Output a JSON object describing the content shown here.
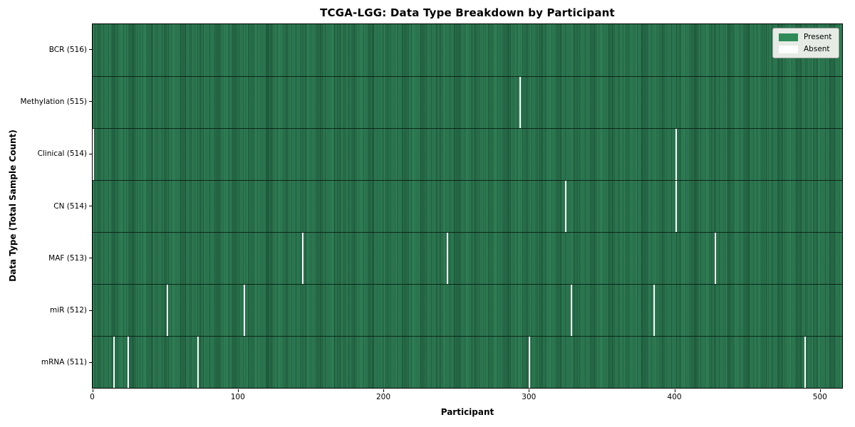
{
  "chart_data": {
    "type": "heatmap",
    "title": "TCGA-LGG: Data Type Breakdown by Participant",
    "xlabel": "Participant",
    "ylabel": "Data Type (Total Sample Count)",
    "x_ticks": [
      0,
      100,
      200,
      300,
      400,
      500
    ],
    "n_participants": 516,
    "grid": false,
    "legend_position": "upper right",
    "colors": {
      "present": "#2e8b57",
      "present_edge": "#14412a",
      "absent": "#ffffff",
      "row_divider": "#0a140c",
      "plot_border": "#000000",
      "legend_background": "#e6ebe6"
    },
    "legend": {
      "entries": [
        {
          "label": "Present",
          "color": "#2e8b57"
        },
        {
          "label": "Absent",
          "color": "#ffffff"
        }
      ]
    },
    "rows": [
      {
        "label": "BCR (516)",
        "data_type": "BCR",
        "total_samples": 516,
        "absent_participants": []
      },
      {
        "label": "Methylation (515)",
        "data_type": "Methylation",
        "total_samples": 515,
        "absent_participants": [
          294
        ]
      },
      {
        "label": "Clinical (514)",
        "data_type": "Clinical",
        "total_samples": 514,
        "absent_participants": [
          0,
          401
        ]
      },
      {
        "label": "CN (514)",
        "data_type": "CN",
        "total_samples": 514,
        "absent_participants": [
          325,
          401
        ]
      },
      {
        "label": "MAF (513)",
        "data_type": "MAF",
        "total_samples": 513,
        "absent_participants": [
          144,
          244,
          428
        ]
      },
      {
        "label": "miR (512)",
        "data_type": "miR",
        "total_samples": 512,
        "absent_participants": [
          51,
          104,
          329,
          386
        ]
      },
      {
        "label": "mRNA (511)",
        "data_type": "mRNA",
        "total_samples": 511,
        "absent_participants": [
          14,
          24,
          72,
          300,
          490
        ]
      }
    ]
  }
}
